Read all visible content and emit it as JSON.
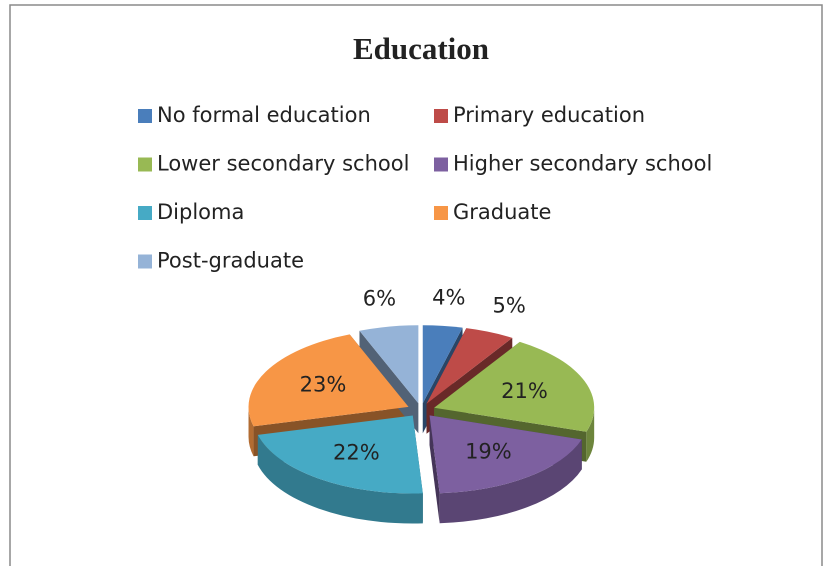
{
  "chart_data": {
    "type": "pie3d",
    "title": "Education",
    "categories": [
      "No formal education",
      "Primary education",
      "Lower secondary school",
      "Higher secondary school",
      "Diploma",
      "Graduate",
      "Post-graduate"
    ],
    "values": [
      4,
      5,
      21,
      19,
      22,
      23,
      6
    ],
    "value_labels": [
      "4%",
      "5%",
      "21%",
      "19%",
      "22%",
      "23%",
      "6%"
    ],
    "colors": [
      "#4a7ebb",
      "#be4b48",
      "#98b954",
      "#7d60a0",
      "#46aac5",
      "#f79646",
      "#95b3d7"
    ],
    "legend": "top"
  }
}
